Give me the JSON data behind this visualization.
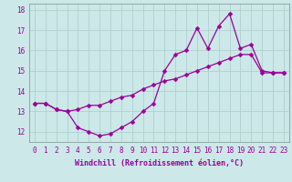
{
  "xlabel": "Windchill (Refroidissement éolien,°C)",
  "x_hours": [
    0,
    1,
    2,
    3,
    4,
    5,
    6,
    7,
    8,
    9,
    10,
    11,
    12,
    13,
    14,
    15,
    16,
    17,
    18,
    19,
    20,
    21,
    22,
    23
  ],
  "line1_y": [
    13.4,
    13.4,
    13.1,
    13.0,
    12.2,
    12.0,
    11.8,
    11.9,
    12.2,
    12.5,
    13.0,
    13.4,
    15.0,
    15.8,
    16.0,
    17.1,
    16.1,
    17.2,
    17.8,
    16.1,
    16.3,
    15.0,
    14.9,
    14.9
  ],
  "line2_y": [
    13.4,
    13.4,
    13.1,
    13.0,
    13.1,
    13.3,
    13.3,
    13.5,
    13.7,
    13.8,
    14.1,
    14.3,
    14.5,
    14.6,
    14.8,
    15.0,
    15.2,
    15.4,
    15.6,
    15.8,
    15.8,
    14.9,
    14.9,
    14.9
  ],
  "line_color": "#990099",
  "bg_color": "#cce8e8",
  "grid_color": "#aacccc",
  "text_color": "#990099",
  "ylim": [
    11.5,
    18.3
  ],
  "yticks": [
    12,
    13,
    14,
    15,
    16,
    17,
    18
  ],
  "marker": "D",
  "markersize": 2.5,
  "linewidth": 0.9,
  "tick_fontsize": 5.5,
  "xlabel_fontsize": 6.0
}
